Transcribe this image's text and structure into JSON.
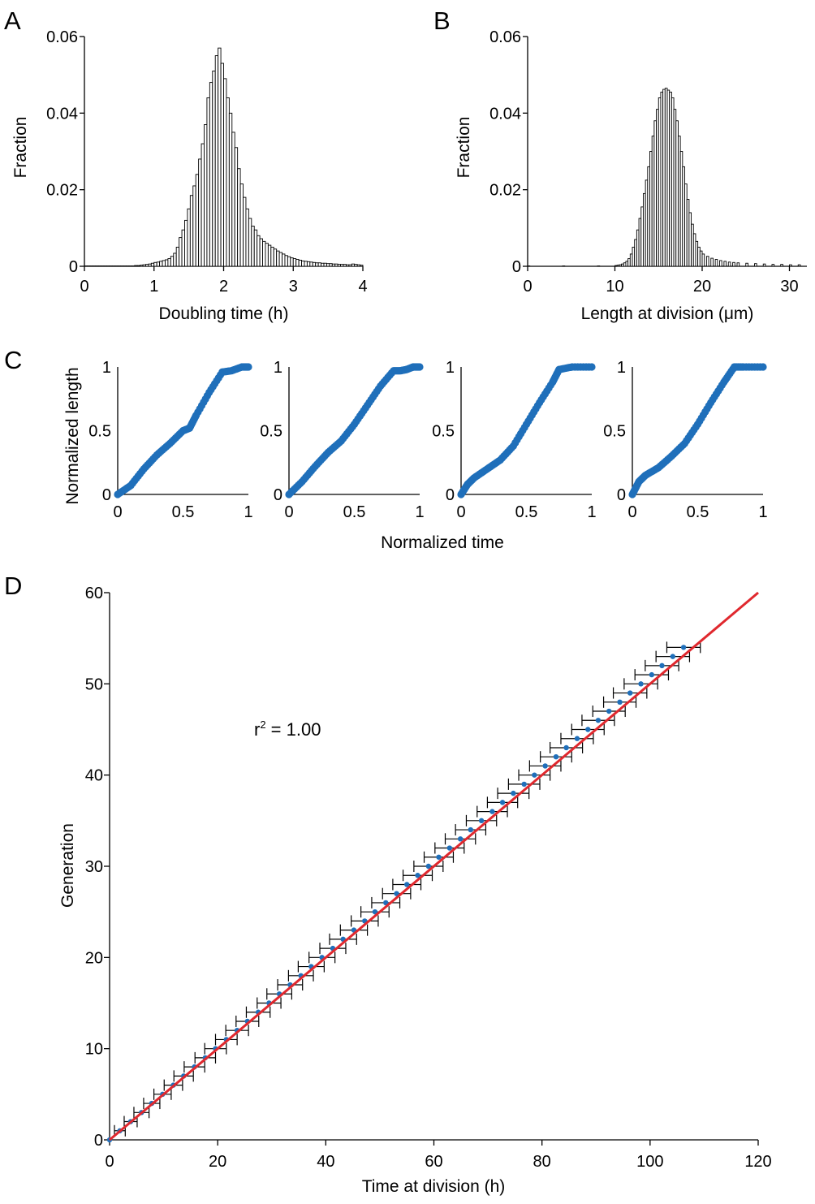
{
  "colors": {
    "axis": "#000000",
    "bar_fill": "#ffffff",
    "bar_edge": "#000000",
    "points": "#1f6fba",
    "fit": "#e0282e",
    "errorbar": "#000000"
  },
  "panels": {
    "a": "A",
    "b": "B",
    "c": "C",
    "d": "D"
  },
  "chart_data": [
    {
      "type": "bar",
      "panel": "A",
      "xlabel": "Doubling time (h)",
      "ylabel": "Fraction",
      "xlim": [
        0,
        4
      ],
      "ylim": [
        0,
        0.06
      ],
      "xticks": [
        0,
        1,
        2,
        3,
        4
      ],
      "yticks": [
        0,
        0.02,
        0.04,
        0.06
      ],
      "xtick_labels": [
        "0",
        "1",
        "2",
        "3",
        "4"
      ],
      "ytick_labels": [
        "0",
        "0.02",
        "0.04",
        "0.06"
      ],
      "bin_width": 0.04,
      "bins": [
        [
          0.0,
          0.0001
        ],
        [
          0.04,
          0.0001
        ],
        [
          0.08,
          0.0001
        ],
        [
          0.12,
          0.0001
        ],
        [
          0.16,
          0.0001
        ],
        [
          0.2,
          0.0001
        ],
        [
          0.24,
          0.0001
        ],
        [
          0.28,
          0.0001
        ],
        [
          0.32,
          0.0001
        ],
        [
          0.36,
          0.0001
        ],
        [
          0.4,
          0.0001
        ],
        [
          0.44,
          0.0001
        ],
        [
          0.48,
          0.0001
        ],
        [
          0.52,
          0.0001
        ],
        [
          0.56,
          0.0001
        ],
        [
          0.6,
          0.0001
        ],
        [
          0.64,
          0.0001
        ],
        [
          0.68,
          0.0001
        ],
        [
          0.72,
          0.0002
        ],
        [
          0.76,
          0.0002
        ],
        [
          0.8,
          0.0003
        ],
        [
          0.84,
          0.0004
        ],
        [
          0.88,
          0.0005
        ],
        [
          0.92,
          0.0006
        ],
        [
          0.96,
          0.0008
        ],
        [
          1.0,
          0.001
        ],
        [
          1.04,
          0.0011
        ],
        [
          1.08,
          0.0013
        ],
        [
          1.12,
          0.0015
        ],
        [
          1.16,
          0.0017
        ],
        [
          1.2,
          0.002
        ],
        [
          1.24,
          0.0026
        ],
        [
          1.28,
          0.0034
        ],
        [
          1.32,
          0.005
        ],
        [
          1.36,
          0.0075
        ],
        [
          1.4,
          0.0095
        ],
        [
          1.44,
          0.012
        ],
        [
          1.48,
          0.015
        ],
        [
          1.52,
          0.0185
        ],
        [
          1.56,
          0.021
        ],
        [
          1.6,
          0.024
        ],
        [
          1.64,
          0.028
        ],
        [
          1.68,
          0.032
        ],
        [
          1.72,
          0.037
        ],
        [
          1.76,
          0.044
        ],
        [
          1.8,
          0.048
        ],
        [
          1.84,
          0.051
        ],
        [
          1.88,
          0.055
        ],
        [
          1.92,
          0.057
        ],
        [
          1.96,
          0.053
        ],
        [
          2.0,
          0.049
        ],
        [
          2.04,
          0.044
        ],
        [
          2.08,
          0.04
        ],
        [
          2.12,
          0.035
        ],
        [
          2.16,
          0.031
        ],
        [
          2.2,
          0.0255
        ],
        [
          2.24,
          0.0215
        ],
        [
          2.28,
          0.018
        ],
        [
          2.32,
          0.015
        ],
        [
          2.36,
          0.0125
        ],
        [
          2.4,
          0.0105
        ],
        [
          2.44,
          0.0095
        ],
        [
          2.48,
          0.008
        ],
        [
          2.52,
          0.0072
        ],
        [
          2.56,
          0.0065
        ],
        [
          2.6,
          0.006
        ],
        [
          2.64,
          0.0055
        ],
        [
          2.68,
          0.005
        ],
        [
          2.72,
          0.0045
        ],
        [
          2.76,
          0.004
        ],
        [
          2.8,
          0.0036
        ],
        [
          2.84,
          0.0032
        ],
        [
          2.88,
          0.0028
        ],
        [
          2.92,
          0.0025
        ],
        [
          2.96,
          0.0022
        ],
        [
          3.0,
          0.002
        ],
        [
          3.04,
          0.0018
        ],
        [
          3.08,
          0.0016
        ],
        [
          3.12,
          0.0014
        ],
        [
          3.16,
          0.0013
        ],
        [
          3.2,
          0.0012
        ],
        [
          3.24,
          0.0011
        ],
        [
          3.28,
          0.001
        ],
        [
          3.32,
          0.0009
        ],
        [
          3.36,
          0.0009
        ],
        [
          3.4,
          0.0008
        ],
        [
          3.44,
          0.0008
        ],
        [
          3.48,
          0.0007
        ],
        [
          3.52,
          0.0007
        ],
        [
          3.56,
          0.0006
        ],
        [
          3.6,
          0.0006
        ],
        [
          3.64,
          0.0005
        ],
        [
          3.68,
          0.0005
        ],
        [
          3.72,
          0.0005
        ],
        [
          3.76,
          0.0004
        ],
        [
          3.8,
          0.0004
        ],
        [
          3.84,
          0.0006
        ],
        [
          3.88,
          0.0005
        ],
        [
          3.92,
          0.0004
        ],
        [
          3.96,
          0.0003
        ]
      ]
    },
    {
      "type": "bar",
      "panel": "B",
      "xlabel": "Length at division (μm)",
      "ylabel": "Fraction",
      "xlim": [
        0,
        32
      ],
      "ylim": [
        0,
        0.06
      ],
      "xticks": [
        0,
        10,
        20,
        30
      ],
      "yticks": [
        0,
        0.02,
        0.04,
        0.06
      ],
      "xtick_labels": [
        "0",
        "10",
        "20",
        "30"
      ],
      "ytick_labels": [
        "0",
        "0.02",
        "0.04",
        "0.06"
      ],
      "bin_width": 0.25,
      "bins": [
        [
          0,
          0.0001
        ],
        [
          4,
          0.0001
        ],
        [
          8,
          0.0001
        ],
        [
          10.0,
          0.0002
        ],
        [
          10.25,
          0.0003
        ],
        [
          10.5,
          0.0004
        ],
        [
          10.75,
          0.0006
        ],
        [
          11.0,
          0.0009
        ],
        [
          11.25,
          0.0013
        ],
        [
          11.5,
          0.002
        ],
        [
          11.75,
          0.0032
        ],
        [
          12.0,
          0.005
        ],
        [
          12.25,
          0.007
        ],
        [
          12.5,
          0.0095
        ],
        [
          12.75,
          0.0125
        ],
        [
          13.0,
          0.0155
        ],
        [
          13.25,
          0.019
        ],
        [
          13.5,
          0.0225
        ],
        [
          13.75,
          0.026
        ],
        [
          14.0,
          0.03
        ],
        [
          14.25,
          0.034
        ],
        [
          14.5,
          0.038
        ],
        [
          14.75,
          0.041
        ],
        [
          15.0,
          0.044
        ],
        [
          15.25,
          0.0455
        ],
        [
          15.5,
          0.0462
        ],
        [
          15.75,
          0.0465
        ],
        [
          16.0,
          0.046
        ],
        [
          16.25,
          0.0455
        ],
        [
          16.5,
          0.044
        ],
        [
          16.75,
          0.041
        ],
        [
          17.0,
          0.038
        ],
        [
          17.25,
          0.034
        ],
        [
          17.5,
          0.03
        ],
        [
          17.75,
          0.026
        ],
        [
          18.0,
          0.0215
        ],
        [
          18.25,
          0.0175
        ],
        [
          18.5,
          0.014
        ],
        [
          18.75,
          0.011
        ],
        [
          19.0,
          0.0085
        ],
        [
          19.25,
          0.0065
        ],
        [
          19.5,
          0.005
        ],
        [
          19.75,
          0.004
        ],
        [
          20.0,
          0.0032
        ],
        [
          20.5,
          0.0026
        ],
        [
          21.0,
          0.0021
        ],
        [
          21.5,
          0.0018
        ],
        [
          22.0,
          0.0015
        ],
        [
          22.5,
          0.0013
        ],
        [
          23.0,
          0.0011
        ],
        [
          23.5,
          0.001
        ],
        [
          24.0,
          0.0009
        ],
        [
          25.0,
          0.0008
        ],
        [
          26.0,
          0.0007
        ],
        [
          27.0,
          0.0006
        ],
        [
          28.0,
          0.0005
        ],
        [
          29.0,
          0.0005
        ],
        [
          30.0,
          0.0004
        ],
        [
          31.0,
          0.0004
        ]
      ]
    },
    {
      "type": "scatter",
      "panel": "C",
      "xlabel": "Normalized time",
      "ylabel": "Normalized length",
      "xlim": [
        0,
        1
      ],
      "ylim": [
        0,
        1
      ],
      "xticks": [
        0,
        0.5,
        1
      ],
      "yticks": [
        0,
        0.5,
        1
      ],
      "xtick_labels": [
        "0",
        "0.5",
        "1"
      ],
      "ytick_labels": [
        "0",
        "0.5",
        "1"
      ],
      "series": [
        {
          "x": [
            0,
            0.1,
            0.2,
            0.3,
            0.4,
            0.5,
            0.55,
            0.6,
            0.7,
            0.8,
            0.87,
            0.95,
            1.0
          ],
          "y": [
            0,
            0.07,
            0.2,
            0.31,
            0.4,
            0.5,
            0.52,
            0.62,
            0.8,
            0.96,
            0.97,
            1.0,
            1.0
          ]
        },
        {
          "x": [
            0,
            0.1,
            0.2,
            0.3,
            0.4,
            0.5,
            0.6,
            0.7,
            0.8,
            0.85,
            0.9,
            0.95,
            1.0
          ],
          "y": [
            0,
            0.1,
            0.22,
            0.33,
            0.42,
            0.55,
            0.7,
            0.85,
            0.97,
            0.97,
            0.98,
            1.0,
            1.0
          ]
        },
        {
          "x": [
            0,
            0.05,
            0.1,
            0.2,
            0.3,
            0.4,
            0.5,
            0.6,
            0.7,
            0.75,
            0.85,
            1.0
          ],
          "y": [
            0,
            0.08,
            0.13,
            0.2,
            0.27,
            0.38,
            0.55,
            0.72,
            0.88,
            0.98,
            1.0,
            1.0
          ]
        },
        {
          "x": [
            0,
            0.05,
            0.1,
            0.2,
            0.3,
            0.4,
            0.5,
            0.6,
            0.7,
            0.78,
            0.85,
            1.0
          ],
          "y": [
            0,
            0.1,
            0.15,
            0.21,
            0.3,
            0.4,
            0.55,
            0.72,
            0.88,
            1.0,
            1.0,
            1.0
          ]
        }
      ]
    },
    {
      "type": "scatter",
      "panel": "D",
      "xlabel": "Time at division (h)",
      "ylabel": "Generation",
      "xlim": [
        0,
        120
      ],
      "ylim": [
        0,
        60
      ],
      "xticks": [
        0,
        20,
        40,
        60,
        80,
        100,
        120
      ],
      "yticks": [
        0,
        10,
        20,
        30,
        40,
        50,
        60
      ],
      "xtick_labels": [
        "0",
        "20",
        "40",
        "60",
        "80",
        "100",
        "120"
      ],
      "ytick_labels": [
        "0",
        "10",
        "20",
        "30",
        "40",
        "50",
        "60"
      ],
      "annotation": {
        "base": "r",
        "sup": "2",
        "rest": " = 1.00"
      },
      "points": {
        "generation": [
          0,
          1,
          2,
          3,
          4,
          5,
          6,
          7,
          8,
          9,
          10,
          11,
          12,
          13,
          14,
          15,
          16,
          17,
          18,
          19,
          20,
          21,
          22,
          23,
          24,
          25,
          26,
          27,
          28,
          29,
          30,
          31,
          32,
          33,
          34,
          35,
          36,
          37,
          38,
          39,
          40,
          41,
          42,
          43,
          44,
          45,
          46,
          47,
          48,
          49,
          50,
          51,
          52,
          53,
          54
        ],
        "time_h": [
          0,
          1.9,
          3.9,
          5.9,
          7.8,
          9.8,
          11.8,
          13.7,
          15.7,
          17.7,
          19.6,
          21.6,
          23.6,
          25.5,
          27.5,
          29.5,
          31.4,
          33.4,
          35.4,
          37.3,
          39.3,
          41.3,
          43.2,
          45.2,
          47.2,
          49.1,
          51.1,
          53.1,
          55.0,
          57.0,
          59.0,
          60.9,
          62.9,
          64.9,
          66.8,
          68.8,
          70.8,
          72.7,
          74.7,
          76.7,
          78.6,
          80.6,
          82.6,
          84.5,
          86.5,
          88.5,
          90.4,
          92.4,
          94.4,
          96.3,
          98.3,
          100.3,
          102.2,
          104.2,
          106.2
        ],
        "error_h": [
          0,
          1.0,
          1.2,
          1.4,
          1.5,
          1.6,
          1.7,
          1.8,
          1.9,
          1.9,
          2.0,
          2.0,
          2.1,
          2.1,
          2.2,
          2.2,
          2.3,
          2.3,
          2.3,
          2.4,
          2.4,
          2.4,
          2.5,
          2.5,
          2.5,
          2.6,
          2.6,
          2.6,
          2.6,
          2.7,
          2.7,
          2.7,
          2.7,
          2.8,
          2.8,
          2.8,
          2.8,
          2.8,
          2.9,
          2.9,
          2.9,
          2.9,
          2.9,
          3.0,
          3.0,
          3.0,
          3.0,
          3.0,
          3.0,
          3.1,
          3.1,
          3.1,
          3.1,
          3.1,
          3.1
        ]
      },
      "fit": {
        "x": [
          0,
          120
        ],
        "y": [
          0,
          60
        ]
      }
    }
  ]
}
